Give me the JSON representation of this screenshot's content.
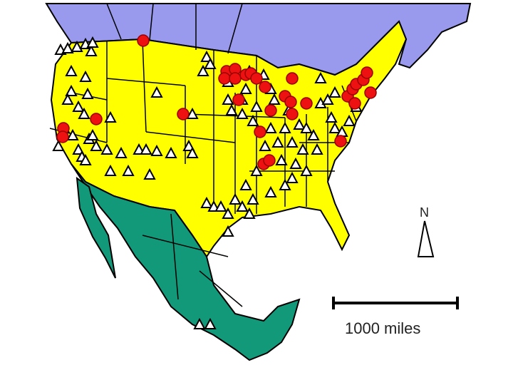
{
  "map": {
    "colors": {
      "canada": "#9999EE",
      "united_states": "#FFFF00",
      "mexico": "#11997A",
      "borders": "#000000",
      "circle_marker": "#EE1111",
      "triangle_marker": "#FFFFFF"
    },
    "marker_types": [
      "white-triangle",
      "red-circle"
    ],
    "north_arrow": {
      "label": "N"
    },
    "scale_bar": {
      "label": "1000 miles"
    }
  }
}
